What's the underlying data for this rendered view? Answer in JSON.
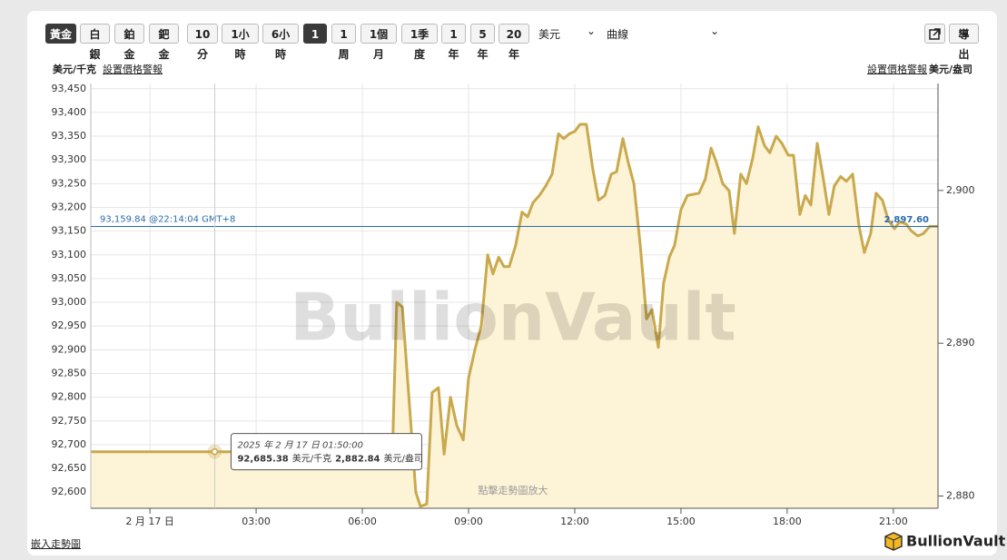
{
  "toolbar": {
    "metals": [
      "黃金",
      "白銀",
      "鉑金",
      "鈀金"
    ],
    "periods": [
      "10分",
      "1小時",
      "6小時",
      "1天",
      "1周",
      "1個月",
      "1季度",
      "1年",
      "5年",
      "20年"
    ],
    "currency": "美元",
    "chart_style": "曲線",
    "export": "導出"
  },
  "labels": {
    "unit_left": "美元/千克",
    "alert_left": "設置價格警報",
    "alert_right": "設置價格警報",
    "unit_right": "美元/盎司",
    "watermark": "BullionVault",
    "hint": "點擊走勢圖放大",
    "embed": "嵌入走勢圖",
    "logo": "BullionVault"
  },
  "chart_data": {
    "type": "line",
    "color": "#c9a94e",
    "fill_color": "#fdf3d6",
    "grid": true,
    "x": [
      -1.67,
      6.85,
      6.97,
      7.13,
      7.51,
      7.64,
      7.82,
      7.97,
      8.15,
      8.31,
      8.49,
      8.67,
      8.85,
      9.0,
      9.18,
      9.36,
      9.54,
      9.69,
      9.85,
      10.0,
      10.15,
      10.33,
      10.51,
      10.67,
      10.82,
      11.0,
      11.18,
      11.36,
      11.54,
      11.69,
      11.85,
      12.0,
      12.15,
      12.33,
      12.51,
      12.67,
      12.85,
      13.03,
      13.18,
      13.36,
      13.51,
      13.67,
      13.85,
      14.03,
      14.18,
      14.36,
      14.51,
      14.67,
      14.82,
      15.0,
      15.18,
      15.51,
      15.69,
      15.85,
      16.0,
      16.18,
      16.36,
      16.51,
      16.69,
      16.85,
      17.03,
      17.18,
      17.36,
      17.51,
      17.69,
      17.85,
      18.03,
      18.18,
      18.36,
      18.51,
      18.67,
      18.85,
      19.0,
      19.18,
      19.33,
      19.51,
      19.67,
      19.85,
      20.03,
      20.18,
      20.36,
      20.51,
      20.69,
      20.85,
      21.03,
      21.18,
      21.36,
      21.51,
      21.69,
      21.85,
      22.03,
      22.26
    ],
    "values": [
      92685,
      92685,
      93000,
      92990,
      92600,
      92570,
      92575,
      92810,
      92820,
      92680,
      92800,
      92740,
      92710,
      92840,
      92900,
      92950,
      93100,
      93060,
      93095,
      93075,
      93075,
      93120,
      93190,
      93180,
      93210,
      93225,
      93245,
      93270,
      93355,
      93345,
      93355,
      93360,
      93375,
      93375,
      93280,
      93215,
      93225,
      93270,
      93275,
      93345,
      93295,
      93250,
      93120,
      92965,
      92985,
      92905,
      93040,
      93095,
      93120,
      93195,
      93225,
      93230,
      93260,
      93325,
      93295,
      93250,
      93235,
      93145,
      93270,
      93250,
      93305,
      93370,
      93330,
      93315,
      93350,
      93335,
      93310,
      93310,
      93185,
      93225,
      93205,
      93335,
      93270,
      93185,
      93245,
      93265,
      93255,
      93270,
      93160,
      93105,
      93145,
      93230,
      93215,
      93175,
      93155,
      93170,
      93165,
      93150,
      93140,
      93145,
      93160,
      93160
    ],
    "xlim": [
      -1.67,
      22.26
    ],
    "xticks": [
      {
        "value": 0,
        "label": "2 月 17 日"
      },
      {
        "value": 3,
        "label": "03:00"
      },
      {
        "value": 6,
        "label": "06:00"
      },
      {
        "value": 9,
        "label": "09:00"
      },
      {
        "value": 12,
        "label": "12:00"
      },
      {
        "value": 15,
        "label": "15:00"
      },
      {
        "value": 18,
        "label": "18:00"
      },
      {
        "value": 21,
        "label": "21:00"
      }
    ],
    "ylim": [
      92566,
      93461
    ],
    "yticks": [
      {
        "value": 92600,
        "label": "92,600"
      },
      {
        "value": 92650,
        "label": "92,650"
      },
      {
        "value": 92700,
        "label": "92,700"
      },
      {
        "value": 92750,
        "label": "92,750"
      },
      {
        "value": 92800,
        "label": "92,800"
      },
      {
        "value": 92850,
        "label": "92,850"
      },
      {
        "value": 92900,
        "label": "92,900"
      },
      {
        "value": 92950,
        "label": "92,950"
      },
      {
        "value": 93000,
        "label": "93,000"
      },
      {
        "value": 93050,
        "label": "93,050"
      },
      {
        "value": 93100,
        "label": "93,100"
      },
      {
        "value": 93150,
        "label": "93,150"
      },
      {
        "value": 93200,
        "label": "93,200"
      },
      {
        "value": 93250,
        "label": "93,250"
      },
      {
        "value": 93300,
        "label": "93,300"
      },
      {
        "value": 93350,
        "label": "93,350"
      },
      {
        "value": 93400,
        "label": "93,400"
      },
      {
        "value": 93450,
        "label": "93,450"
      }
    ],
    "y2lim": [
      2879.2,
      2907.0
    ],
    "y2ticks": [
      {
        "value": 2880,
        "label": "2,880"
      },
      {
        "value": 2890,
        "label": "2,890"
      },
      {
        "value": 2900,
        "label": "2,900"
      }
    ],
    "current": {
      "value": 93159.84,
      "label": "93,159.84 @22:14:04 GMT+8",
      "y2_value": 2897.6,
      "y2_label": "2,897.60",
      "color": "#2b6cb0"
    },
    "hover": {
      "x": 1.83,
      "time": "2025 年 2 月 17 日 01:50:00",
      "value": 92685.38,
      "value_label": "92,685.38",
      "unit": "美元/千克",
      "y2_value": 2882.84,
      "y2_label": "2,882.84",
      "y2_unit": "美元/盎司"
    }
  }
}
